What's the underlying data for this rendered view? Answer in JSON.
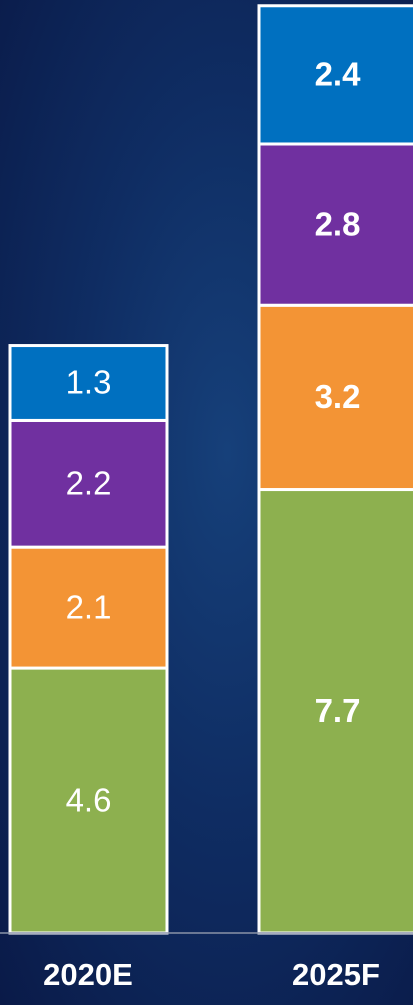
{
  "chart_data": {
    "type": "stacked_bar",
    "categories": [
      "2020E",
      "2025F"
    ],
    "series": [
      {
        "color": "#8db04f",
        "values": [
          4.6,
          7.7
        ]
      },
      {
        "color": "#f39435",
        "values": [
          2.1,
          3.2
        ]
      },
      {
        "color": "#7030a0",
        "values": [
          2.2,
          2.8
        ]
      },
      {
        "color": "#0070c0",
        "values": [
          1.3,
          2.4
        ]
      }
    ],
    "ylim": [
      0,
      16.2
    ]
  }
}
